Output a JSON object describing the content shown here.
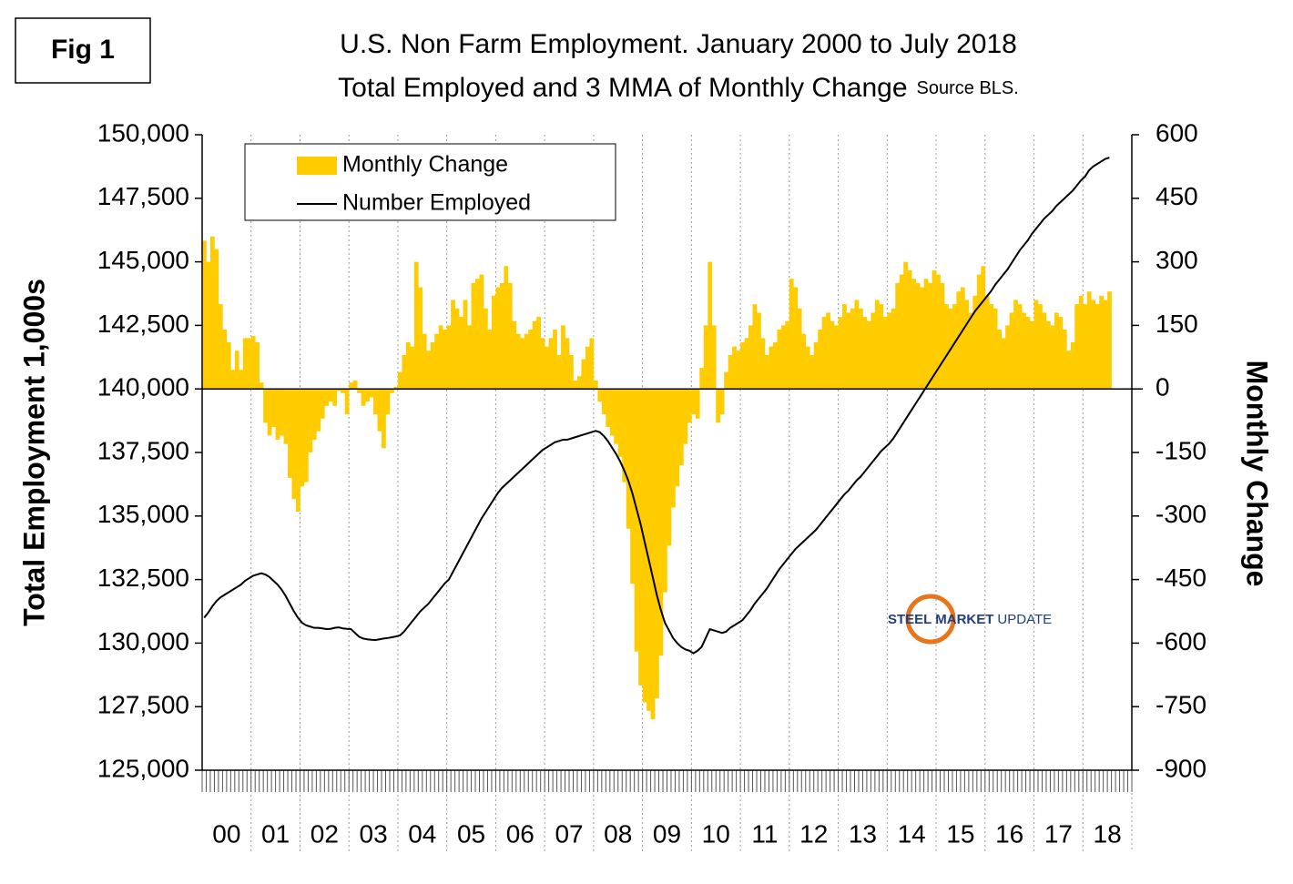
{
  "chart_data": {
    "type": "combo",
    "figure_label": "Fig 1",
    "title": "U.S. Non Farm Employment. January 2000 to July 2018",
    "subtitle": "Total Employed and 3 MMA of Monthly Change",
    "source": "Source BLS.",
    "y_label": "Total Employment 1,000s",
    "y2_label": "Monthly Change",
    "watermark": {
      "bold": "STEEL MARKET",
      "text": "UPDATE"
    },
    "legend": "top-left",
    "categories": [
      null,
      null,
      null,
      null,
      null,
      null,
      "00",
      null,
      null,
      null,
      null,
      null,
      null,
      null,
      null,
      null,
      null,
      null,
      "01",
      null,
      null,
      null,
      null,
      null,
      null,
      null,
      null,
      null,
      null,
      null,
      "02",
      null,
      null,
      null,
      null,
      null,
      null,
      null,
      null,
      null,
      null,
      null,
      "03",
      null,
      null,
      null,
      null,
      null,
      null,
      null,
      null,
      null,
      null,
      null,
      "04",
      null,
      null,
      null,
      null,
      null,
      null,
      null,
      null,
      null,
      null,
      null,
      "05",
      null,
      null,
      null,
      null,
      null,
      null,
      null,
      null,
      null,
      null,
      null,
      "06",
      null,
      null,
      null,
      null,
      null,
      null,
      null,
      null,
      null,
      null,
      null,
      "07",
      null,
      null,
      null,
      null,
      null,
      null,
      null,
      null,
      null,
      null,
      null,
      "08",
      null,
      null,
      null,
      null,
      null,
      null,
      null,
      null,
      null,
      null,
      null,
      "09",
      null,
      null,
      null,
      null,
      null,
      null,
      null,
      null,
      null,
      null,
      null,
      "10",
      null,
      null,
      null,
      null,
      null,
      null,
      null,
      null,
      null,
      null,
      null,
      "11",
      null,
      null,
      null,
      null,
      null,
      null,
      null,
      null,
      null,
      null,
      null,
      "12",
      null,
      null,
      null,
      null,
      null,
      null,
      null,
      null,
      null,
      null,
      null,
      "13",
      null,
      null,
      null,
      null,
      null,
      null,
      null,
      null,
      null,
      null,
      null,
      "14",
      null,
      null,
      null,
      null,
      null,
      null,
      null,
      null,
      null,
      null,
      null,
      "15",
      null,
      null,
      null,
      null,
      null,
      null,
      null,
      null,
      null,
      null,
      null,
      "16",
      null,
      null,
      null,
      null,
      null,
      null,
      null,
      null,
      null,
      null,
      null,
      "17",
      null,
      null,
      null,
      null,
      null,
      null,
      null,
      null,
      null,
      null,
      null,
      "18",
      null,
      null,
      null,
      null,
      null
    ],
    "series": [
      {
        "name": "Monthly Change",
        "type": "bar",
        "axis": "y2",
        "color": "#ffcc00",
        "values": [
          350,
          300,
          360,
          330,
          200,
          140,
          110,
          45,
          90,
          45,
          120,
          120,
          125,
          110,
          15,
          -80,
          -110,
          -90,
          -120,
          -110,
          -130,
          -210,
          -260,
          -290,
          -230,
          -220,
          -150,
          -120,
          -100,
          -70,
          -40,
          -30,
          -40,
          -5,
          -10,
          -60,
          15,
          20,
          -10,
          -40,
          -30,
          -20,
          -60,
          -100,
          -140,
          -60,
          -10,
          5,
          40,
          80,
          110,
          100,
          300,
          240,
          130,
          90,
          110,
          130,
          150,
          140,
          150,
          210,
          190,
          170,
          210,
          150,
          250,
          260,
          270,
          190,
          140,
          220,
          240,
          250,
          290,
          250,
          160,
          130,
          120,
          130,
          140,
          160,
          170,
          120,
          100,
          120,
          140,
          80,
          150,
          120,
          80,
          20,
          30,
          70,
          100,
          120,
          20,
          -30,
          -60,
          -90,
          -110,
          -130,
          -160,
          -220,
          -330,
          -460,
          -620,
          -700,
          -740,
          -760,
          -780,
          -730,
          -630,
          -480,
          -370,
          -280,
          -230,
          -180,
          -130,
          -80,
          -60,
          -70,
          50,
          150,
          300,
          150,
          -80,
          -60,
          40,
          80,
          100,
          90,
          110,
          120,
          150,
          200,
          180,
          120,
          80,
          100,
          110,
          140,
          150,
          160,
          260,
          240,
          190,
          130,
          100,
          80,
          110,
          140,
          170,
          180,
          160,
          150,
          170,
          200,
          180,
          190,
          210,
          190,
          170,
          160,
          180,
          210,
          200,
          170,
          180,
          190,
          250,
          270,
          300,
          280,
          260,
          250,
          240,
          260,
          250,
          280,
          270,
          250,
          200,
          190,
          200,
          230,
          240,
          210,
          180,
          220,
          270,
          290,
          220,
          200,
          190,
          140,
          120,
          150,
          180,
          210,
          200,
          180,
          170,
          160,
          210,
          200,
          180,
          160,
          150,
          180,
          170,
          140,
          90,
          110,
          200,
          220,
          200,
          230,
          210,
          200,
          220,
          210,
          230,
          null,
          null,
          null,
          null,
          null
        ]
      },
      {
        "name": "Number Employed",
        "type": "line",
        "axis": "y",
        "color": "#000000",
        "values": [
          131000,
          131200,
          131450,
          131650,
          131800,
          131900,
          132000,
          132100,
          132200,
          132300,
          132450,
          132550,
          132650,
          132700,
          132750,
          132700,
          132600,
          132450,
          132300,
          132100,
          131850,
          131550,
          131250,
          131000,
          130800,
          130700,
          130650,
          130600,
          130600,
          130580,
          130550,
          130560,
          130600,
          130620,
          130580,
          130560,
          130550,
          130400,
          130250,
          130180,
          130150,
          130130,
          130120,
          130150,
          130180,
          130200,
          130230,
          130260,
          130300,
          130450,
          130650,
          130850,
          131050,
          131250,
          131400,
          131550,
          131750,
          131950,
          132150,
          132350,
          132500,
          132800,
          133100,
          133400,
          133700,
          134000,
          134300,
          134600,
          134900,
          135150,
          135400,
          135650,
          135900,
          136100,
          136250,
          136400,
          136550,
          136700,
          136850,
          137000,
          137150,
          137300,
          137450,
          137600,
          137700,
          137800,
          137900,
          137950,
          138000,
          138000,
          138050,
          138100,
          138150,
          138200,
          138250,
          138300,
          138350,
          138300,
          138150,
          137950,
          137700,
          137450,
          137150,
          136800,
          136400,
          135900,
          135300,
          134700,
          134000,
          133300,
          132600,
          131900,
          131300,
          130800,
          130500,
          130200,
          130000,
          129850,
          129750,
          129700,
          129600,
          129700,
          129850,
          130200,
          130550,
          130500,
          130450,
          130400,
          130450,
          130600,
          130700,
          130800,
          130900,
          131100,
          131300,
          131550,
          131750,
          131950,
          132150,
          132400,
          132650,
          132900,
          133100,
          133300,
          133500,
          133700,
          133850,
          134000,
          134150,
          134300,
          134450,
          134650,
          134850,
          135050,
          135250,
          135450,
          135650,
          135850,
          136000,
          136200,
          136400,
          136550,
          136750,
          136950,
          137150,
          137350,
          137550,
          137700,
          137850,
          138050,
          138300,
          138550,
          138800,
          139050,
          139300,
          139550,
          139800,
          140050,
          140300,
          140550,
          140800,
          141050,
          141300,
          141550,
          141800,
          142050,
          142300,
          142550,
          142800,
          143050,
          143250,
          143450,
          143650,
          143850,
          144100,
          144300,
          144500,
          144700,
          144950,
          145200,
          145450,
          145650,
          145850,
          146100,
          146300,
          146500,
          146700,
          146850,
          147000,
          147200,
          147350,
          147500,
          147650,
          147800,
          148000,
          148200,
          148350,
          148600,
          148750,
          148850,
          148950,
          149050,
          149100,
          null,
          null,
          null,
          null,
          null
        ]
      }
    ],
    "ylim": [
      125000,
      150000
    ],
    "yticks": [
      {
        "value": 125000,
        "label": "125,000"
      },
      {
        "value": 127500,
        "label": "127,500"
      },
      {
        "value": 130000,
        "label": "130,000"
      },
      {
        "value": 132500,
        "label": "132,500"
      },
      {
        "value": 135000,
        "label": "135,000"
      },
      {
        "value": 137500,
        "label": "137,500"
      },
      {
        "value": 140000,
        "label": "140,000"
      },
      {
        "value": 142500,
        "label": "142,500"
      },
      {
        "value": 145000,
        "label": "145,000"
      },
      {
        "value": 147500,
        "label": "147,500"
      },
      {
        "value": 150000,
        "label": "150,000"
      }
    ],
    "y2lim": [
      -900,
      600
    ],
    "y2ticks": [
      -900,
      -750,
      -600,
      -450,
      -300,
      -150,
      0,
      150,
      300,
      450,
      600
    ],
    "grid": true
  }
}
